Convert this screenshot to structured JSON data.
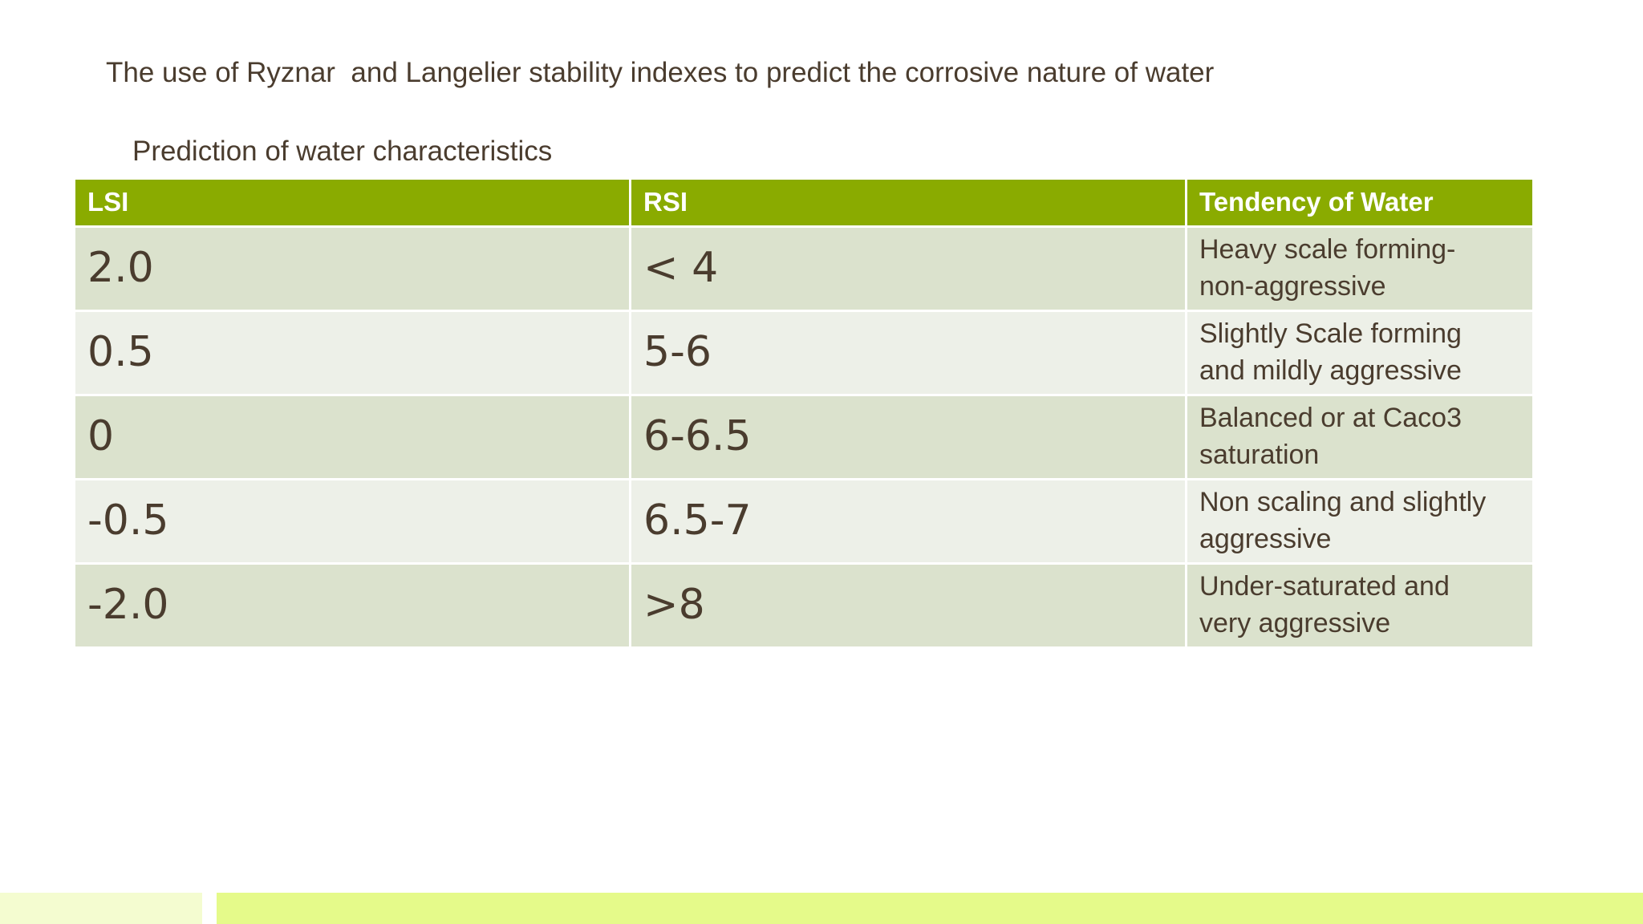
{
  "slide": {
    "title": "The use of Ryznar  and Langelier stability indexes to predict the corrosive nature of water",
    "caption": "Prediction of water characteristics"
  },
  "table": {
    "headers": [
      "LSI",
      "RSI",
      "Tendency of  Water"
    ],
    "rows": [
      {
        "lsi": "2.0",
        "rsi": "< 4",
        "tendency_line1": "Heavy scale forming-",
        "tendency_line2": "non-aggressive"
      },
      {
        "lsi": "0.5",
        "rsi": "5-6",
        "tendency_line1": "Slightly Scale forming",
        "tendency_line2": "and mildly aggressive"
      },
      {
        "lsi": "0",
        "rsi": "6-6.5",
        "tendency_line1": "Balanced or at Caco3",
        "tendency_line2": "saturation"
      },
      {
        "lsi": "-0.5",
        "rsi": "6.5-7",
        "tendency_line1": "Non scaling and slightly",
        "tendency_line2": "aggressive"
      },
      {
        "lsi": "-2.0",
        "rsi": ">8",
        "tendency_line1": "Under-saturated and",
        "tendency_line2": "very aggressive"
      }
    ]
  },
  "colors": {
    "header_green": "#8aab00",
    "row_dark": "#dbe2cd",
    "row_light": "#edf0e8",
    "text_brown": "#4a3c2e",
    "footer_left": "#f4fcd0",
    "footer_right": "#e5fa8a"
  }
}
